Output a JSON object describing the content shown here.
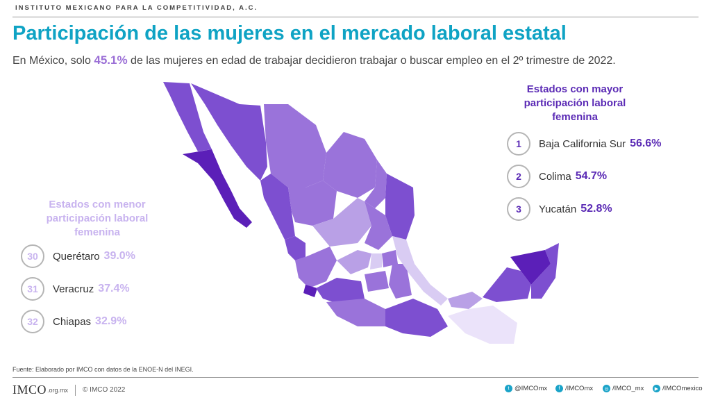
{
  "header": {
    "org": "INSTITUTO MEXICANO PARA LA COMPETITIVIDAD, A.C.",
    "title": "Participación de las mujeres en el mercado laboral estatal",
    "subtitle_pre": "En México, solo",
    "subtitle_value": "45.1%",
    "subtitle_post": "de las mujeres en edad de trabajar decidieron trabajar o buscar empleo en el 2º trimestre de 2022."
  },
  "top_states": {
    "heading": "Estados con mayor participación laboral femenina",
    "items": [
      {
        "rank": "1",
        "name": "Baja California Sur",
        "value": "56.6%"
      },
      {
        "rank": "2",
        "name": "Colima",
        "value": "54.7%"
      },
      {
        "rank": "3",
        "name": "Yucatán",
        "value": "52.8%"
      }
    ]
  },
  "bottom_states": {
    "heading": "Estados con menor participación laboral femenina",
    "items": [
      {
        "rank": "30",
        "name": "Querétaro",
        "value": "39.0%"
      },
      {
        "rank": "31",
        "name": "Veracruz",
        "value": "37.4%"
      },
      {
        "rank": "32",
        "name": "Chiapas",
        "value": "32.9%"
      }
    ]
  },
  "colors": {
    "title": "#0fa3c4",
    "highest": "#5b1fb8",
    "high": "#7d4fd0",
    "mid": "#9a73da",
    "low": "#b9a0e6",
    "lowest": "#d9ccf3"
  },
  "footer": {
    "source": "Fuente: Elaborado por IMCO con datos de la ENOE-N del INEGI.",
    "logo": "IMCO",
    "logo_suffix": ".org.mx",
    "copyright": "© IMCO 2022",
    "social": [
      {
        "icon": "twitter-icon",
        "label": "@IMCOmx"
      },
      {
        "icon": "facebook-icon",
        "label": "/IMCOmx"
      },
      {
        "icon": "instagram-icon",
        "label": "/IMCO_mx"
      },
      {
        "icon": "youtube-icon",
        "label": "/IMCOmexico"
      }
    ]
  }
}
